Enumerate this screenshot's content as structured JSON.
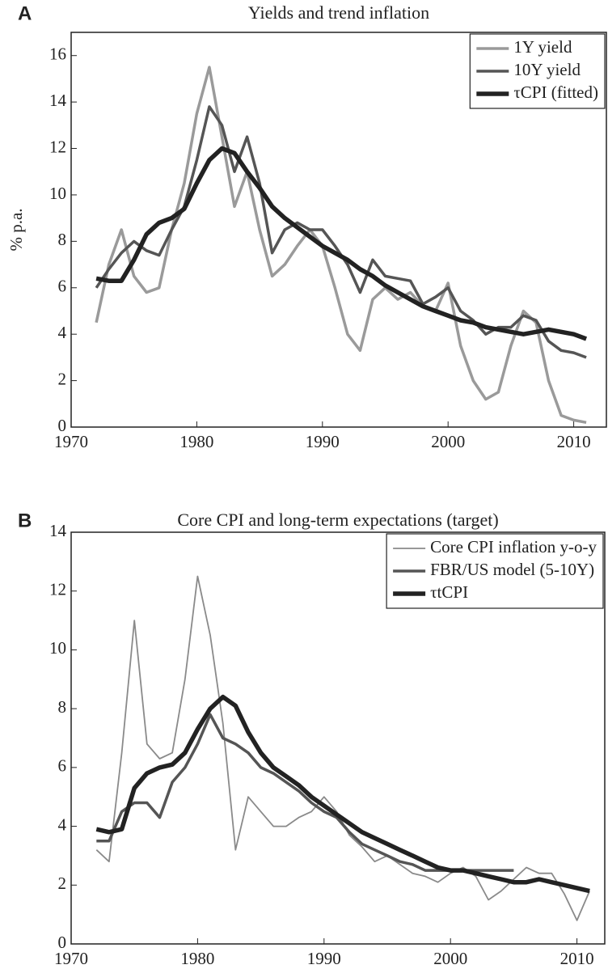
{
  "chart_data": [
    {
      "type": "line",
      "panel": "A",
      "title": "Yields and trend inflation",
      "y_label": "% p.a.",
      "x": [
        1972,
        1973,
        1974,
        1975,
        1976,
        1977,
        1978,
        1979,
        1980,
        1981,
        1982,
        1983,
        1984,
        1985,
        1986,
        1987,
        1988,
        1989,
        1990,
        1991,
        1992,
        1993,
        1994,
        1995,
        1996,
        1997,
        1998,
        1999,
        2000,
        2001,
        2002,
        2003,
        2004,
        2005,
        2006,
        2007,
        2008,
        2009,
        2010,
        2011
      ],
      "series": [
        {
          "name": "1Y yield",
          "color": "#9a9a9a",
          "width": 3.5,
          "values": [
            4.5,
            7.0,
            8.5,
            6.5,
            5.8,
            6.0,
            8.5,
            10.5,
            13.5,
            15.5,
            12.5,
            9.5,
            11.0,
            8.5,
            6.5,
            7.0,
            7.8,
            8.5,
            7.8,
            6.0,
            4.0,
            3.3,
            5.5,
            6.0,
            5.5,
            5.8,
            5.2,
            5.0,
            6.2,
            3.5,
            2.0,
            1.2,
            1.5,
            3.5,
            5.0,
            4.5,
            2.0,
            0.5,
            0.3,
            0.2
          ]
        },
        {
          "name": "10Y yield",
          "color": "#555555",
          "width": 3.5,
          "values": [
            6.0,
            6.8,
            7.5,
            8.0,
            7.6,
            7.4,
            8.5,
            9.5,
            11.5,
            13.8,
            13.0,
            11.0,
            12.5,
            10.5,
            7.5,
            8.5,
            8.8,
            8.5,
            8.5,
            7.8,
            7.0,
            5.8,
            7.2,
            6.5,
            6.4,
            6.3,
            5.3,
            5.6,
            6.0,
            5.0,
            4.6,
            4.0,
            4.3,
            4.3,
            4.8,
            4.6,
            3.7,
            3.3,
            3.2,
            3.0
          ]
        },
        {
          "name": "τCPI (fitted)",
          "color": "#222222",
          "width": 5.5,
          "values": [
            6.4,
            6.3,
            6.3,
            7.2,
            8.3,
            8.8,
            9.0,
            9.4,
            10.5,
            11.5,
            12.0,
            11.8,
            11.0,
            10.3,
            9.5,
            9.0,
            8.6,
            8.2,
            7.8,
            7.5,
            7.2,
            6.8,
            6.5,
            6.1,
            5.8,
            5.5,
            5.2,
            5.0,
            4.8,
            4.6,
            4.5,
            4.3,
            4.2,
            4.1,
            4.0,
            4.1,
            4.2,
            4.1,
            4.0,
            3.8
          ]
        }
      ],
      "xlim": [
        1970,
        2012.6
      ],
      "xticks": [
        1970,
        1980,
        1990,
        2000,
        2010
      ],
      "ylim": [
        0,
        17
      ],
      "yticks": [
        0,
        2,
        4,
        6,
        8,
        10,
        12,
        14,
        16
      ],
      "grid": false,
      "legend": "upper right"
    },
    {
      "type": "line",
      "panel": "B",
      "title": "Core CPI and long-term expectations (target)",
      "x": [
        1972,
        1973,
        1974,
        1975,
        1976,
        1977,
        1978,
        1979,
        1980,
        1981,
        1982,
        1983,
        1984,
        1985,
        1986,
        1987,
        1988,
        1989,
        1990,
        1991,
        1992,
        1993,
        1994,
        1995,
        1996,
        1997,
        1998,
        1999,
        2000,
        2001,
        2002,
        2003,
        2004,
        2005,
        2006,
        2007,
        2008,
        2009,
        2010,
        2011
      ],
      "series": [
        {
          "name": "Core CPI inflation y-o-y",
          "color": "#8a8a8a",
          "width": 1.8,
          "values": [
            3.2,
            2.8,
            6.5,
            11.0,
            6.8,
            6.3,
            6.5,
            9.0,
            12.5,
            10.5,
            7.5,
            3.2,
            5.0,
            4.5,
            4.0,
            4.0,
            4.3,
            4.5,
            5.0,
            4.5,
            3.7,
            3.3,
            2.8,
            3.0,
            2.7,
            2.4,
            2.3,
            2.1,
            2.4,
            2.6,
            2.3,
            1.5,
            1.8,
            2.2,
            2.6,
            2.4,
            2.4,
            1.7,
            0.8,
            1.8
          ]
        },
        {
          "name": "FBR/US model (5-10Y)",
          "color": "#555555",
          "width": 3.5,
          "values": [
            3.5,
            3.5,
            4.5,
            4.8,
            4.8,
            4.3,
            5.5,
            6.0,
            6.8,
            7.8,
            7.0,
            6.8,
            6.5,
            6.0,
            5.8,
            5.5,
            5.2,
            4.8,
            4.5,
            4.3,
            3.8,
            3.4,
            3.2,
            3.0,
            2.8,
            2.7,
            2.5,
            2.5,
            2.5,
            2.5,
            2.5,
            2.5,
            2.5,
            2.5,
            null,
            null,
            null,
            null,
            null,
            null
          ]
        },
        {
          "name": "τtCPI",
          "color": "#222222",
          "width": 5.5,
          "values": [
            3.9,
            3.8,
            3.9,
            5.3,
            5.8,
            6.0,
            6.1,
            6.5,
            7.3,
            8.0,
            8.4,
            8.1,
            7.2,
            6.5,
            6.0,
            5.7,
            5.4,
            5.0,
            4.7,
            4.4,
            4.1,
            3.8,
            3.6,
            3.4,
            3.2,
            3.0,
            2.8,
            2.6,
            2.5,
            2.5,
            2.4,
            2.3,
            2.2,
            2.1,
            2.1,
            2.2,
            2.1,
            2.0,
            1.9,
            1.8
          ]
        }
      ],
      "xlim": [
        1970,
        2012.2
      ],
      "xticks": [
        1970,
        1980,
        1990,
        2000,
        2010
      ],
      "ylim": [
        0,
        14
      ],
      "yticks": [
        0,
        2,
        4,
        6,
        8,
        10,
        12,
        14
      ],
      "grid": false,
      "legend": "upper right"
    }
  ]
}
